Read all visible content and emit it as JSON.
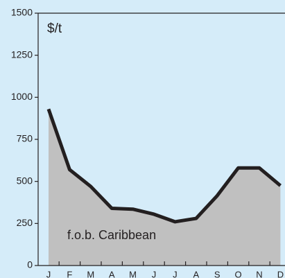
{
  "chart_data": {
    "type": "area",
    "y_label": "$/t",
    "categories": [
      "J",
      "F",
      "M",
      "A",
      "M",
      "J",
      "J",
      "A",
      "S",
      "O",
      "N",
      "D"
    ],
    "series": [
      {
        "name": "f.o.b. Caribbean",
        "color": "#231f20",
        "fill": "#c0c0c0",
        "values": [
          930,
          570,
          470,
          340,
          335,
          305,
          260,
          280,
          415,
          580,
          580,
          475
        ]
      }
    ],
    "ylim": [
      0,
      1500
    ],
    "yticks": [
      0,
      250,
      500,
      750,
      1000,
      1250,
      1500
    ]
  }
}
